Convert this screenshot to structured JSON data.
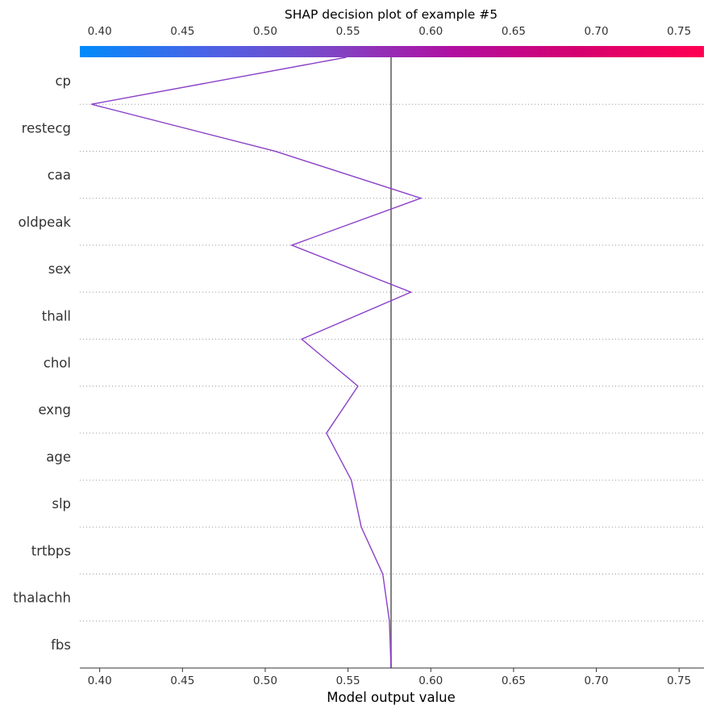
{
  "chart_data": {
    "type": "line",
    "title": "SHAP decision plot of example #5",
    "xlabel": "Model output value",
    "ylabel": "",
    "xlim": [
      0.388,
      0.765
    ],
    "x_ticks": [
      0.4,
      0.45,
      0.5,
      0.55,
      0.6,
      0.65,
      0.7,
      0.75
    ],
    "x_tick_labels": [
      "0.40",
      "0.45",
      "0.50",
      "0.55",
      "0.60",
      "0.65",
      "0.70",
      "0.75"
    ],
    "base_value": 0.576,
    "features": [
      "cp",
      "restecg",
      "caa",
      "oldpeak",
      "sex",
      "thall",
      "chol",
      "exng",
      "age",
      "slp",
      "trtbps",
      "thalachh",
      "fbs"
    ],
    "series": [
      {
        "values": [
          0.549,
          0.395,
          0.506,
          0.594,
          0.516,
          0.588,
          0.522,
          0.556,
          0.537,
          0.552,
          0.558,
          0.571,
          0.575,
          0.576
        ],
        "color": "#8a3fc8"
      }
    ],
    "colorbar": {
      "colors": [
        "#008bfb",
        "#4a63e6",
        "#7f45c6",
        "#b10ea0",
        "#d6006f",
        "#ff0052"
      ]
    },
    "grid": "dotted horizontal separators"
  }
}
